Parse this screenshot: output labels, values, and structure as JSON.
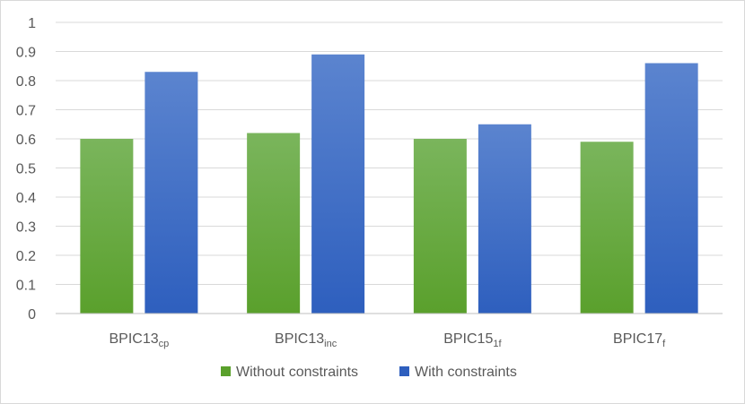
{
  "chart_data": {
    "type": "bar",
    "categories": [
      {
        "base": "BPIC13",
        "sub": "cp"
      },
      {
        "base": "BPIC13",
        "sub": "inc"
      },
      {
        "base": "BPIC15",
        "sub": "1f"
      },
      {
        "base": "BPIC17",
        "sub": "f"
      }
    ],
    "series": [
      {
        "name": "Without constraints",
        "values": [
          0.6,
          0.62,
          0.6,
          0.59
        ],
        "color_top": "#7ab55c",
        "color_bottom": "#5aa02c"
      },
      {
        "name": "With constraints",
        "values": [
          0.83,
          0.89,
          0.65,
          0.86
        ],
        "color_top": "#5b84cf",
        "color_bottom": "#2e5fbe"
      }
    ],
    "ylim": [
      0,
      1
    ],
    "yticks": [
      "0",
      "0.1",
      "0.2",
      "0.3",
      "0.4",
      "0.5",
      "0.6",
      "0.7",
      "0.8",
      "0.9",
      "1"
    ],
    "grid": true,
    "legend_position": "bottom"
  }
}
